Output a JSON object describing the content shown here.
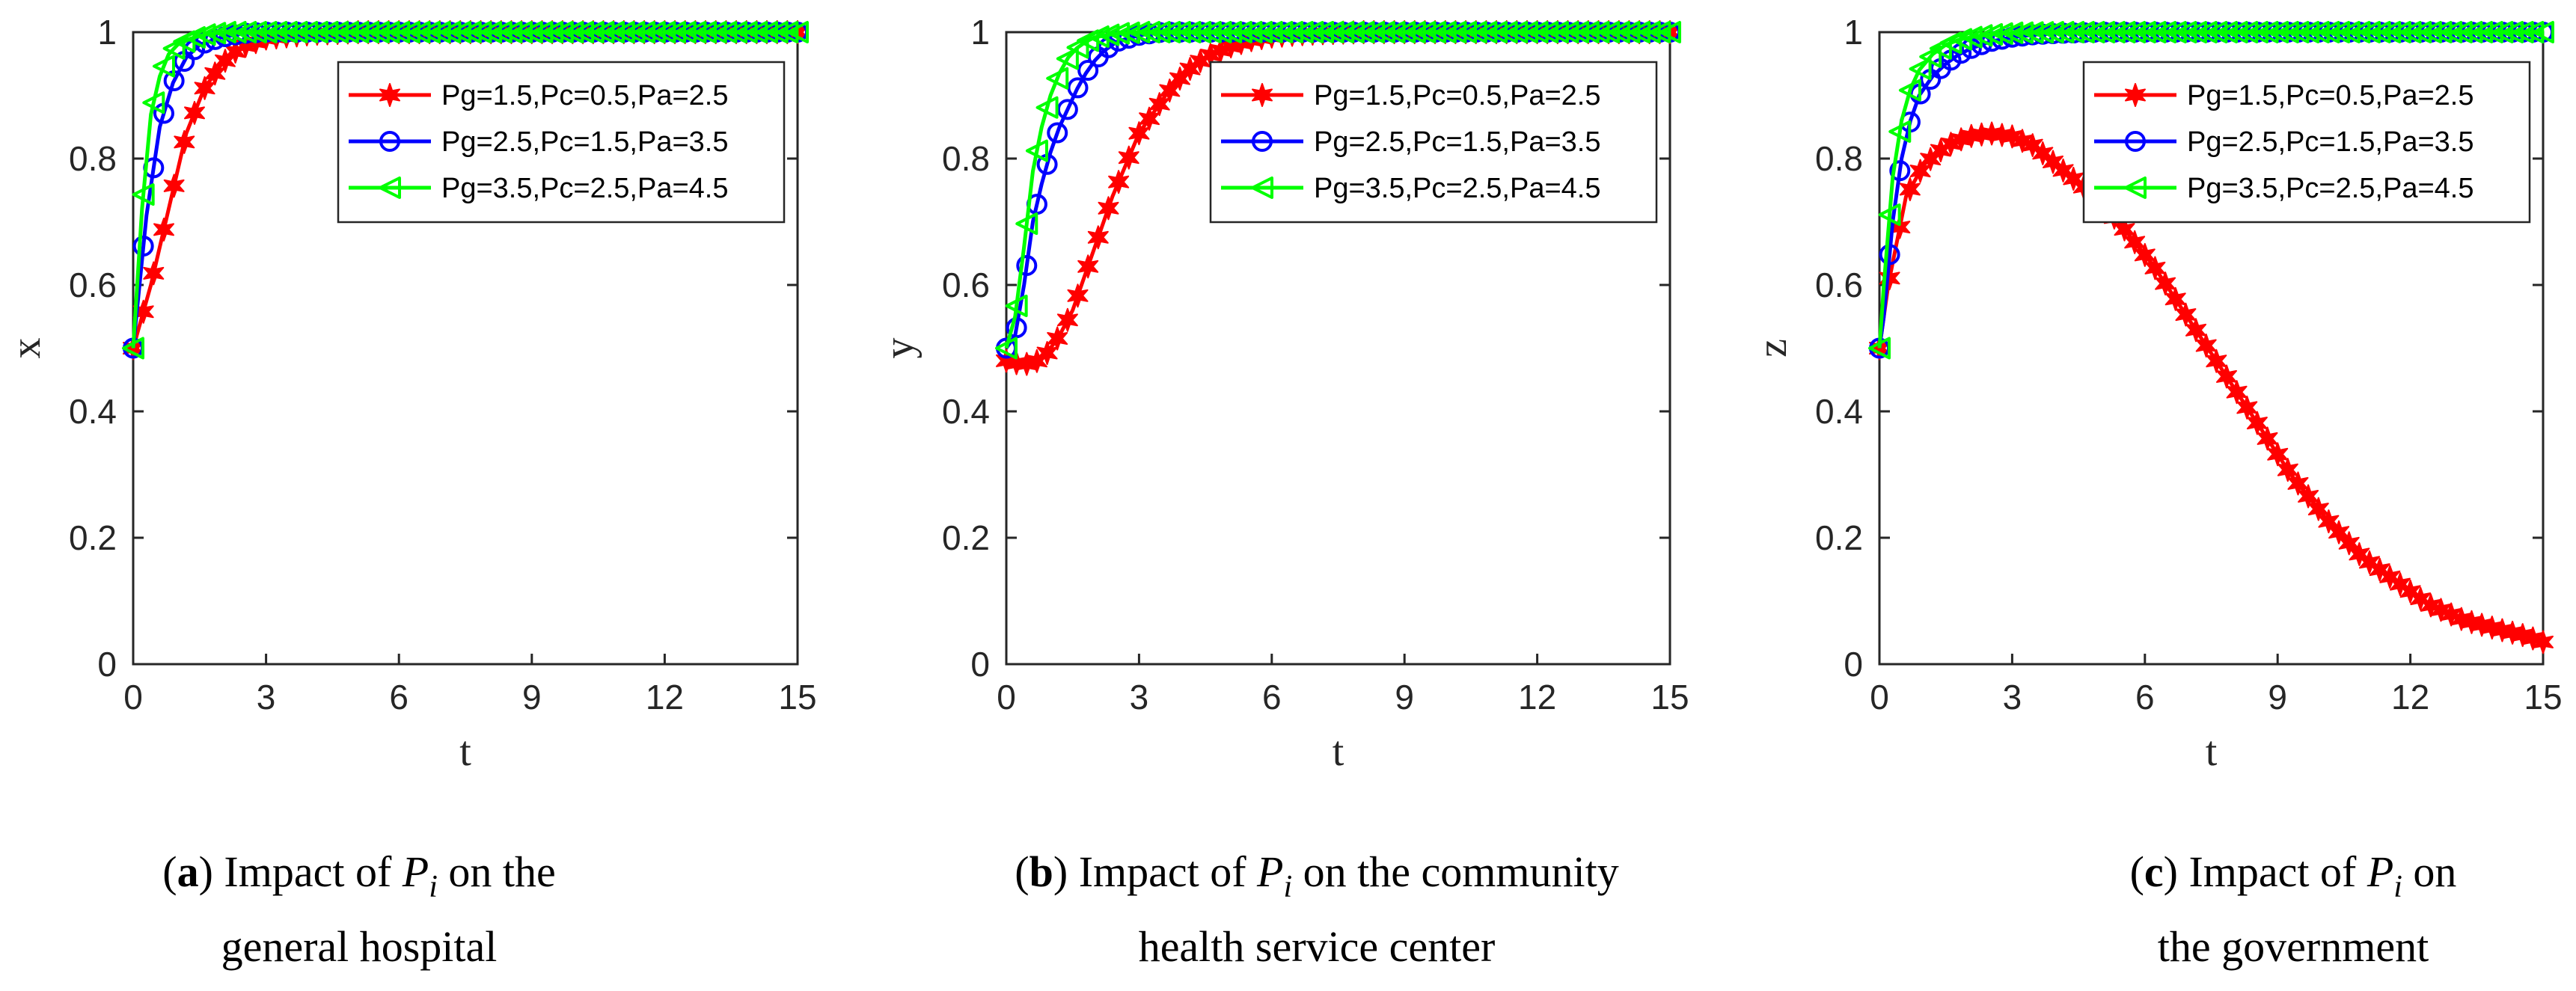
{
  "colors": {
    "series": [
      "#ff0000",
      "#0000ff",
      "#00ff00"
    ],
    "axis": "#262626"
  },
  "markers": [
    "star",
    "circle",
    "triangle-left"
  ],
  "legend": [
    "Pg=1.5,Pc=0.5,Pa=2.5",
    "Pg=2.5,Pc=1.5,Pa=3.5",
    "Pg=3.5,Pc=2.5,Pa=4.5"
  ],
  "chart_data": [
    {
      "type": "line",
      "xlabel": "t",
      "ylabel": "x",
      "xlim": [
        0,
        15
      ],
      "ylim": [
        0,
        1
      ],
      "xticks": [
        "0",
        "3",
        "6",
        "9",
        "12",
        "15"
      ],
      "yticks": [
        "0",
        "0.2",
        "0.4",
        "0.6",
        "0.8",
        "1"
      ],
      "legend_position": "top-right",
      "caption": {
        "letter": "a",
        "pre": "Impact of",
        "symbol": "P",
        "sub": "i",
        "post": "on the",
        "line2": "general hospital"
      },
      "series": [
        {
          "name": "Pg=1.5,Pc=0.5,Pa=2.5",
          "x": [
            0,
            0.4,
            0.8,
            1.2,
            1.6,
            2.0,
            2.4,
            3.0,
            4.0,
            5.0,
            6.0,
            8.0,
            10.0,
            12.0,
            15.0
          ],
          "y": [
            0.5,
            0.6,
            0.72,
            0.84,
            0.91,
            0.95,
            0.975,
            0.99,
            0.997,
            1.0,
            1.0,
            1.0,
            1.0,
            1.0,
            1.0
          ]
        },
        {
          "name": "Pg=2.5,Pc=1.5,Pa=3.5",
          "x": [
            0,
            0.3,
            0.6,
            0.9,
            1.2,
            1.5,
            2.0,
            2.5,
            3.0,
            4.0,
            6.0,
            9.0,
            12.0,
            15.0
          ],
          "y": [
            0.5,
            0.71,
            0.85,
            0.92,
            0.96,
            0.98,
            0.992,
            0.998,
            1.0,
            1.0,
            1.0,
            1.0,
            1.0,
            1.0
          ]
        },
        {
          "name": "Pg=3.5,Pc=2.5,Pa=4.5",
          "x": [
            0,
            0.2,
            0.4,
            0.6,
            0.8,
            1.0,
            1.3,
            1.6,
            2.0,
            3.0,
            5.0,
            8.0,
            12.0,
            15.0
          ],
          "y": [
            0.5,
            0.72,
            0.87,
            0.93,
            0.965,
            0.98,
            0.99,
            0.996,
            1.0,
            1.0,
            1.0,
            1.0,
            1.0,
            1.0
          ]
        }
      ]
    },
    {
      "type": "line",
      "xlabel": "t",
      "ylabel": "y",
      "xlim": [
        0,
        15
      ],
      "ylim": [
        0,
        1
      ],
      "xticks": [
        "0",
        "3",
        "6",
        "9",
        "12",
        "15"
      ],
      "yticks": [
        "0",
        "0.2",
        "0.4",
        "0.6",
        "0.8",
        "1"
      ],
      "legend_position": "top-right",
      "caption": {
        "letter": "b",
        "pre": "Impact of",
        "symbol": "P",
        "sub": "i",
        "post": "on the community",
        "line2": "health service center"
      },
      "series": [
        {
          "name": "Pg=1.5,Pc=0.5,Pa=2.5",
          "x": [
            0,
            0.3,
            0.6,
            0.9,
            1.2,
            1.5,
            1.8,
            2.1,
            2.4,
            2.7,
            3.0,
            3.3,
            3.6,
            3.9,
            4.2,
            4.5,
            4.8,
            5.1,
            5.4,
            5.7,
            6.0,
            6.5,
            7.0,
            8.0,
            9.0,
            10.0,
            12.0,
            15.0
          ],
          "y": [
            0.48,
            0.475,
            0.475,
            0.49,
            0.52,
            0.56,
            0.62,
            0.68,
            0.74,
            0.79,
            0.84,
            0.87,
            0.9,
            0.925,
            0.945,
            0.96,
            0.97,
            0.978,
            0.985,
            0.99,
            0.993,
            0.996,
            0.998,
            1.0,
            1.0,
            1.0,
            1.0,
            1.0
          ]
        },
        {
          "name": "Pg=2.5,Pc=1.5,Pa=3.5",
          "x": [
            0,
            0.2,
            0.4,
            0.6,
            0.8,
            1.0,
            1.2,
            1.4,
            1.6,
            1.8,
            2.0,
            2.2,
            2.5,
            3.0,
            3.5,
            4.0,
            5.0,
            7.0,
            10.0,
            15.0
          ],
          "y": [
            0.5,
            0.52,
            0.6,
            0.7,
            0.76,
            0.81,
            0.85,
            0.88,
            0.91,
            0.935,
            0.955,
            0.97,
            0.985,
            0.995,
            1.0,
            1.0,
            1.0,
            1.0,
            1.0,
            1.0
          ]
        },
        {
          "name": "Pg=3.5,Pc=2.5,Pa=4.5",
          "x": [
            0,
            0.2,
            0.4,
            0.6,
            0.8,
            1.0,
            1.2,
            1.4,
            1.6,
            1.8,
            2.0,
            2.5,
            3.0,
            4.0,
            6.0,
            10.0,
            15.0
          ],
          "y": [
            0.5,
            0.55,
            0.66,
            0.78,
            0.85,
            0.9,
            0.935,
            0.96,
            0.975,
            0.985,
            0.992,
            0.998,
            1.0,
            1.0,
            1.0,
            1.0,
            1.0
          ]
        }
      ]
    },
    {
      "type": "line",
      "xlabel": "t",
      "ylabel": "z",
      "xlim": [
        0,
        15
      ],
      "ylim": [
        0,
        1
      ],
      "xticks": [
        "0",
        "3",
        "6",
        "9",
        "12",
        "15"
      ],
      "yticks": [
        "0",
        "0.2",
        "0.4",
        "0.6",
        "0.8",
        "1"
      ],
      "legend_position": "top-right",
      "caption": {
        "letter": "c",
        "pre": "Impact of",
        "symbol": "P",
        "sub": "i",
        "post": "on",
        "line2": "the government"
      },
      "series": [
        {
          "name": "Pg=1.5,Pc=0.5,Pa=2.5",
          "x": [
            0,
            0.2,
            0.6,
            1.0,
            1.5,
            2.0,
            2.5,
            3.0,
            3.5,
            4.0,
            4.7,
            5.4,
            6.2,
            7.0,
            7.8,
            8.6,
            9.3,
            10.1,
            10.9,
            11.7,
            12.4,
            13.2,
            14.0,
            14.6,
            15.0
          ],
          "y": [
            0.5,
            0.6,
            0.74,
            0.79,
            0.82,
            0.835,
            0.84,
            0.835,
            0.82,
            0.79,
            0.75,
            0.7,
            0.63,
            0.545,
            0.46,
            0.375,
            0.3,
            0.23,
            0.17,
            0.13,
            0.095,
            0.07,
            0.055,
            0.045,
            0.035
          ]
        },
        {
          "name": "Pg=2.5,Pc=1.5,Pa=3.5",
          "x": [
            0,
            0.1,
            0.3,
            0.5,
            0.7,
            0.9,
            1.2,
            1.5,
            1.8,
            2.1,
            2.5,
            3.0,
            3.5,
            4.0,
            5.0,
            7.0,
            10.0,
            15.0
          ],
          "y": [
            0.5,
            0.55,
            0.7,
            0.8,
            0.86,
            0.9,
            0.93,
            0.95,
            0.965,
            0.975,
            0.985,
            0.992,
            0.996,
            0.998,
            1.0,
            1.0,
            1.0,
            1.0
          ]
        },
        {
          "name": "Pg=3.5,Pc=2.5,Pa=4.5",
          "x": [
            0,
            0.1,
            0.3,
            0.5,
            0.7,
            0.9,
            1.2,
            1.5,
            1.8,
            2.2,
            2.6,
            3.0,
            4.0,
            6.0,
            10.0,
            15.0
          ],
          "y": [
            0.5,
            0.6,
            0.77,
            0.86,
            0.91,
            0.94,
            0.965,
            0.98,
            0.988,
            0.994,
            0.997,
            0.999,
            1.0,
            1.0,
            1.0,
            1.0
          ]
        }
      ]
    }
  ]
}
